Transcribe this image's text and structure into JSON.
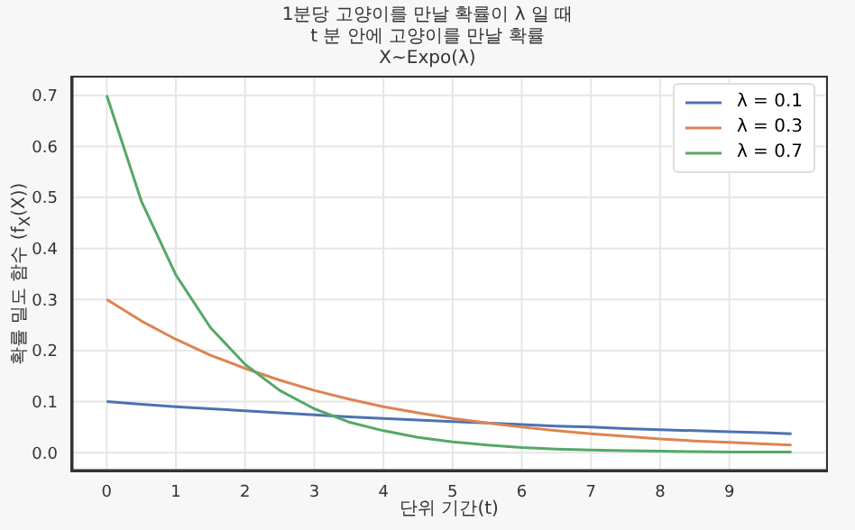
{
  "chart_data": {
    "type": "line",
    "title": "1분당 고양이를 만날 확률이 λ 일 때\nt 분 안에 고양이를 만날 확률\nX~Expo(λ)",
    "xlabel": "단위 기간(t)",
    "ylabel": "확률 밀도 함수 (f$_{X}$(X))",
    "x": [
      0,
      0.5,
      1,
      1.5,
      2,
      2.5,
      3,
      3.5,
      4,
      4.5,
      5,
      5.5,
      6,
      6.5,
      7,
      7.5,
      8,
      8.5,
      9,
      9.5,
      9.9
    ],
    "series": [
      {
        "name": "λ = 0.1",
        "color": "#4c72b0",
        "values": [
          0.1,
          0.095,
          0.09,
          0.086,
          0.082,
          0.078,
          0.074,
          0.07,
          0.067,
          0.064,
          0.061,
          0.058,
          0.055,
          0.052,
          0.05,
          0.047,
          0.045,
          0.043,
          0.041,
          0.039,
          0.037
        ]
      },
      {
        "name": "λ = 0.3",
        "color": "#dd8452",
        "values": [
          0.3,
          0.258,
          0.222,
          0.191,
          0.165,
          0.142,
          0.122,
          0.105,
          0.09,
          0.078,
          0.067,
          0.058,
          0.05,
          0.043,
          0.037,
          0.032,
          0.027,
          0.023,
          0.02,
          0.017,
          0.015
        ]
      },
      {
        "name": "λ = 0.7",
        "color": "#55a868",
        "values": [
          0.7,
          0.493,
          0.348,
          0.245,
          0.173,
          0.122,
          0.086,
          0.06,
          0.043,
          0.03,
          0.021,
          0.015,
          0.01,
          0.007,
          0.005,
          0.004,
          0.003,
          0.002,
          0.001,
          0.001,
          0.001
        ]
      }
    ],
    "xlim": [
      -0.5,
      10.4
    ],
    "xticks": [
      0,
      1,
      2,
      3,
      4,
      5,
      6,
      7,
      8,
      9
    ],
    "ylim": [
      -0.035,
      0.735
    ],
    "yticks": [
      {
        "value": 0,
        "label": "0.0"
      },
      0.1,
      0.2,
      0.3,
      0.4,
      0.5,
      0.6,
      0.7
    ],
    "grid": true,
    "legend": "top right",
    "marker": "none",
    "line_style": "solid"
  }
}
